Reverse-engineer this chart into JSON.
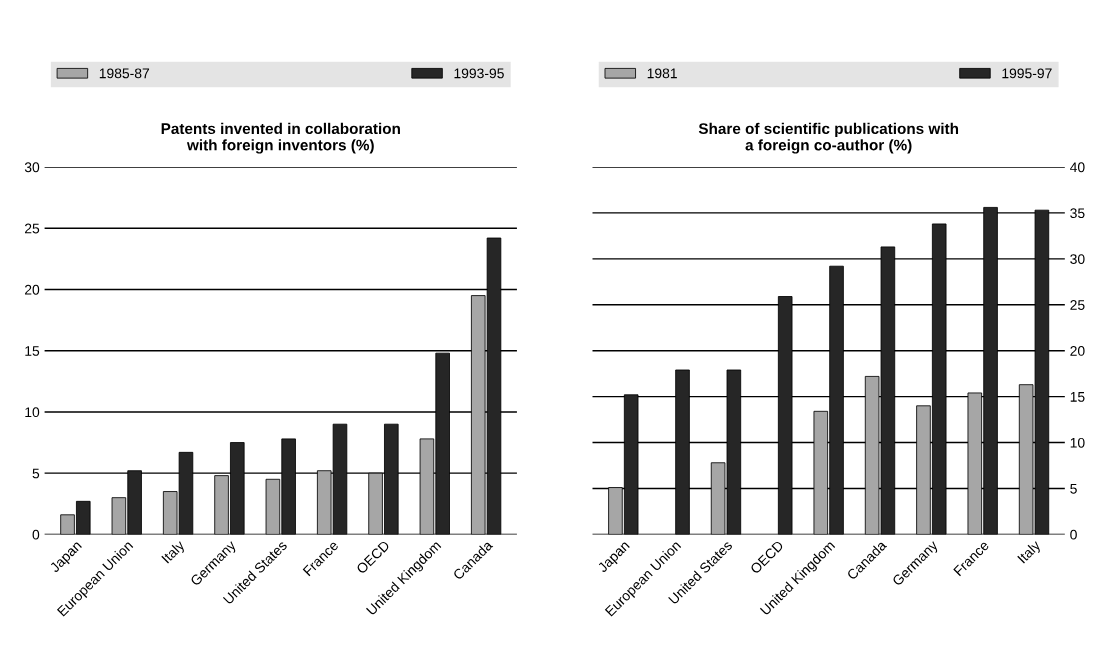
{
  "chart_data": [
    {
      "type": "bar",
      "title": "Patents invented in collaboration\nwith foreign inventors (%)",
      "categories": [
        "Japan",
        "European Union",
        "Italy",
        "Germany",
        "United States",
        "France",
        "OECD",
        "United Kingdom",
        "Canada"
      ],
      "series": [
        {
          "name": "1985-87",
          "color": "#a6a6a6",
          "values": [
            1.6,
            3.0,
            3.5,
            4.8,
            4.5,
            5.2,
            5.0,
            7.8,
            19.5
          ]
        },
        {
          "name": "1993-95",
          "color": "#262626",
          "values": [
            2.7,
            5.2,
            6.7,
            7.5,
            7.8,
            9.0,
            9.0,
            14.8,
            24.2
          ]
        }
      ],
      "ylim": [
        0,
        30
      ],
      "yticks": [
        0,
        5,
        10,
        15,
        20,
        25,
        30
      ],
      "grid": "y",
      "legend": "top"
    },
    {
      "type": "bar",
      "title": "Share of scientific publications with\na foreign co-author (%)",
      "categories": [
        "Japan",
        "European Union",
        "United States",
        "OECD",
        "United Kingdom",
        "Canada",
        "Germany",
        "France",
        "Italy"
      ],
      "series": [
        {
          "name": "1981",
          "color": "#a6a6a6",
          "axis": "y2",
          "values": [
            5.1,
            null,
            7.8,
            null,
            13.4,
            17.2,
            14.0,
            15.4,
            16.3
          ]
        },
        {
          "name": "1995-97",
          "color": "#262626",
          "axis": "y2",
          "values": [
            15.2,
            17.9,
            17.9,
            25.9,
            29.2,
            31.3,
            33.8,
            35.6,
            35.3
          ]
        }
      ],
      "y2lim": [
        0,
        40
      ],
      "y2ticks": [
        0,
        5,
        10,
        15,
        20,
        25,
        30,
        35,
        40
      ],
      "grid": "y",
      "legend": "top"
    }
  ]
}
